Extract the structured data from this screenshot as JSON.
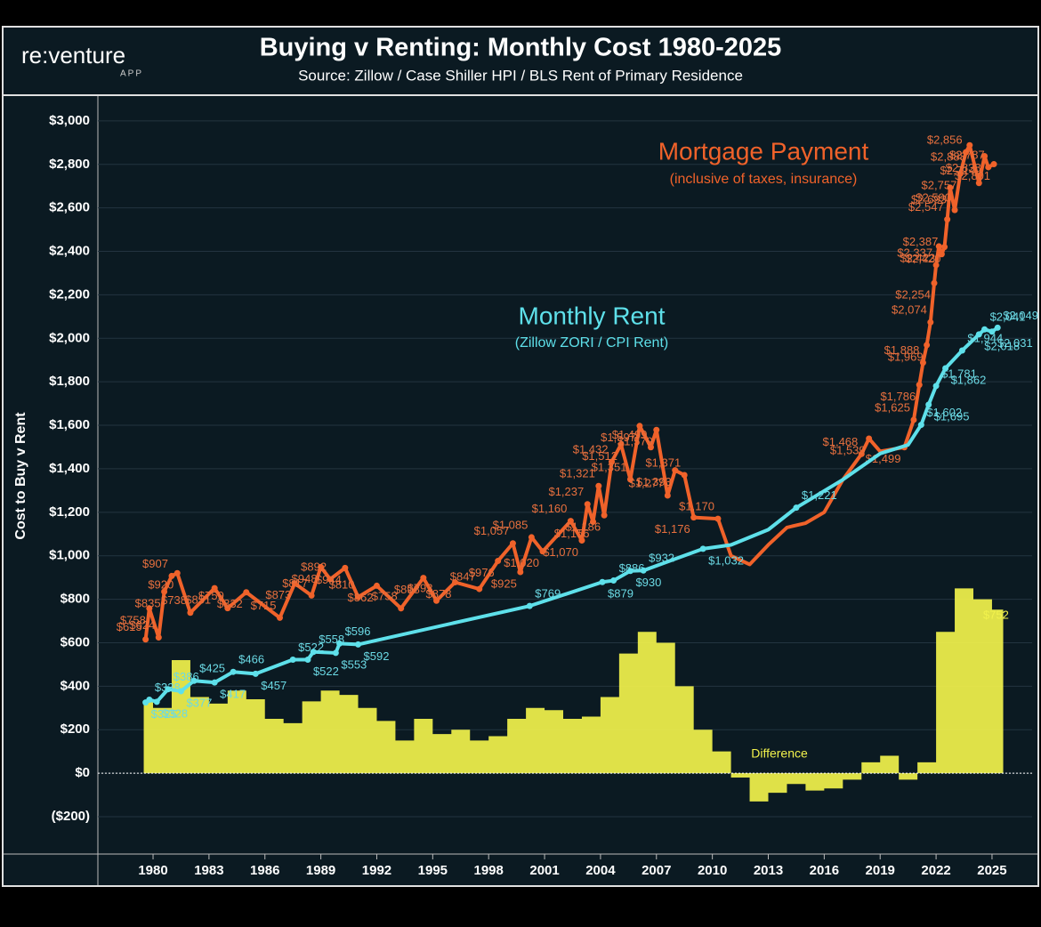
{
  "logo": {
    "name": "re:venture",
    "tag": "APP"
  },
  "chart_data": {
    "type": "line",
    "title": "Buying v Renting: Monthly Cost 1980-2025",
    "subtitle": "Source: Zillow / Case Shiller HPI / BLS Rent of Primary Residence",
    "y_label": "Cost to Buy v Rent",
    "grid": true,
    "xlim": [
      1977.04,
      2027.15
    ],
    "xticks": [
      1980,
      1983,
      1986,
      1989,
      1992,
      1995,
      1998,
      2001,
      2004,
      2007,
      2010,
      2013,
      2016,
      2019,
      2022,
      2025
    ],
    "ylim": [
      -372,
      3106
    ],
    "yticks": [
      {
        "value": -200,
        "label": "($200)"
      },
      {
        "value": 0,
        "label": "$0"
      },
      {
        "value": 200,
        "label": "$200"
      },
      {
        "value": 400,
        "label": "$400"
      },
      {
        "value": 600,
        "label": "$600"
      },
      {
        "value": 800,
        "label": "$800"
      },
      {
        "value": 1000,
        "label": "$1,000"
      },
      {
        "value": 1200,
        "label": "$1,200"
      },
      {
        "value": 1400,
        "label": "$1,400"
      },
      {
        "value": 1600,
        "label": "$1,600"
      },
      {
        "value": 1800,
        "label": "$1,800"
      },
      {
        "value": 2000,
        "label": "$2,000"
      },
      {
        "value": 2200,
        "label": "$2,200"
      },
      {
        "value": 2400,
        "label": "$2,400"
      },
      {
        "value": 2600,
        "label": "$2,600"
      },
      {
        "value": 2800,
        "label": "$2,800"
      },
      {
        "value": 3000,
        "label": "$3,000"
      }
    ],
    "series": [
      {
        "name": "Mortgage Payment",
        "note": "(inclusive of taxes, insurance)",
        "color": "#f0622a",
        "kind": "line",
        "x": [
          1979.6,
          1979.8,
          1980.3,
          1980.6,
          1981.0,
          1981.3,
          1982.0,
          1983.3,
          1984.0,
          1985.0,
          1986.8,
          1987.6,
          1988.5,
          1989.0,
          1989.5,
          1990.3,
          1991.0,
          1992.0,
          1993.3,
          1994.5,
          1995.2,
          1996.2,
          1997.5,
          1998.5,
          1999.3,
          1999.7,
          2000.3,
          2000.9,
          2002.4,
          2003.0,
          2003.3,
          2003.6,
          2003.9,
          2004.2,
          2004.6,
          2005.1,
          2005.6,
          2006.1,
          2006.7,
          2007.0,
          2007.6,
          2008.0,
          2008.5,
          2009.0,
          2010.3,
          2011,
          2012,
          2013,
          2014,
          2015,
          2016,
          2017,
          2018.0,
          2018.4,
          2019.0,
          2020.3,
          2020.8,
          2021.1,
          2021.3,
          2021.5,
          2021.7,
          2021.9,
          2022.0,
          2022.15,
          2022.3,
          2022.45,
          2022.6,
          2022.75,
          2023.0,
          2023.3,
          2023.6,
          2023.8,
          2024.3,
          2024.6,
          2024.8,
          2025.1
        ],
        "values": [
          615,
          758,
          624,
          835,
          907,
          920,
          738,
          851,
          759,
          832,
          715,
          873,
          817,
          948,
          892,
          944,
          810,
          862,
          758,
          898,
          793,
          878,
          847,
          976,
          1057,
          925,
          1085,
          1020,
          1160,
          1070,
          1237,
          1156,
          1321,
          1186,
          1432,
          1512,
          1351,
          1597,
          1499,
          1579,
          1277,
          1393,
          1371,
          1176,
          1170,
          1000,
          960,
          1050,
          1130,
          1150,
          1200,
          1350,
          1468,
          1539,
          1480,
          1499,
          1625,
          1786,
          1888,
          1969,
          2074,
          2254,
          2337,
          2423,
          2387,
          2420,
          2547,
          2693,
          2590,
          2757,
          2856,
          2888,
          2714,
          2838,
          2787,
          2801
        ],
        "value_labels": [
          "$615",
          "$758",
          "$624",
          "$835",
          "$907",
          "$920",
          "$738",
          "$851",
          "$759",
          "$832",
          "$715",
          "$873",
          "$817",
          "$948",
          "$892",
          "$944",
          "$810",
          "$862",
          "$758",
          "$898",
          "$793",
          "$878",
          "$847",
          "$976",
          "$1,057",
          "$925",
          "$1,085",
          "$1,020",
          "$1,160",
          "$1,070",
          "$1,237",
          "$1,156",
          "$1,321",
          "$1,186",
          "$1,432",
          "$1,512",
          "$1,351",
          "$1,597",
          "$1,499",
          "$1,579",
          "$1,277",
          "$1,393",
          "$1,371",
          "$1,176",
          "$1,170",
          null,
          null,
          null,
          null,
          null,
          null,
          null,
          "$1,468",
          "$1,539",
          null,
          "$1,499",
          "$1,625",
          "$1,786",
          "$1,888",
          "$1,969",
          "$2,074",
          "$2,254",
          "$2,337",
          "$2,423",
          "$2,387",
          "$2,420",
          "$2,547",
          "$2,693",
          "$2,590",
          "$2,757",
          "$2,856",
          "$2,888",
          "$2,714",
          "$2,838",
          "$2,787",
          "$2,801"
        ]
      },
      {
        "name": "Monthly Rent",
        "note": "(Zillow ZORI / CPI Rent)",
        "color": "#5ee0ea",
        "kind": "line",
        "x": [
          1979.6,
          1979.8,
          1980.2,
          1980.8,
          1981.5,
          1982.2,
          1983.3,
          1984.3,
          1985.5,
          1987.5,
          1988.3,
          1988.6,
          1989.8,
          1990.0,
          1991.0,
          2000.2,
          2004.1,
          2004.7,
          2005.6,
          2006.3,
          2009.5,
          2011,
          2013,
          2014.5,
          2017,
          2019,
          2020.5,
          2021.2,
          2021.6,
          2022.0,
          2022.5,
          2023.4,
          2024.3,
          2024.6,
          2025.0,
          2025.3
        ],
        "values": [
          325,
          338,
          328,
          386,
          377,
          425,
          417,
          466,
          457,
          522,
          522,
          558,
          553,
          596,
          592,
          769,
          879,
          886,
          930,
          932,
          1032,
          1050,
          1120,
          1221,
          1350,
          1470,
          1510,
          1602,
          1695,
          1781,
          1862,
          1944,
          2018,
          2041,
          2031,
          2049
        ],
        "value_labels": [
          "$325",
          "$338",
          "$328",
          "$386",
          "$377",
          "$425",
          "$417",
          "$466",
          "$457",
          "$522",
          "$522",
          "$558",
          "$553",
          "$596",
          "$592",
          "$769",
          "$879",
          "$886",
          "$930",
          "$932",
          "$1,032",
          null,
          null,
          "$1,221",
          null,
          null,
          null,
          "$1,602",
          "$1,695",
          "$1,781",
          "$1,862",
          "$1,944",
          "$2,018",
          "$2,041",
          "$2,031",
          "$2,049"
        ]
      },
      {
        "name": "Difference",
        "color": "#f2f24c",
        "kind": "area",
        "x": [
          1979.5,
          1980,
          1981,
          1982,
          1983,
          1984,
          1985,
          1986,
          1987,
          1988,
          1989,
          1990,
          1991,
          1992,
          1993,
          1994,
          1995,
          1996,
          1997,
          1998,
          1999,
          2000,
          2001,
          2002,
          2003,
          2004,
          2005,
          2006,
          2007,
          2008,
          2009,
          2010,
          2011,
          2012,
          2013,
          2014,
          2015,
          2016,
          2017,
          2018,
          2019,
          2020,
          2021,
          2022,
          2023,
          2024,
          2025
        ],
        "values": [
          330,
          300,
          520,
          350,
          320,
          380,
          340,
          250,
          230,
          330,
          380,
          360,
          300,
          240,
          150,
          250,
          180,
          200,
          150,
          170,
          250,
          300,
          290,
          250,
          260,
          350,
          550,
          650,
          600,
          400,
          200,
          100,
          -20,
          -130,
          -90,
          -50,
          -80,
          -70,
          -30,
          50,
          80,
          -30,
          50,
          650,
          850,
          800,
          752
        ],
        "value_labels": [
          null,
          null,
          null,
          null,
          null,
          null,
          null,
          null,
          null,
          null,
          null,
          null,
          null,
          null,
          null,
          null,
          null,
          null,
          null,
          null,
          null,
          null,
          null,
          null,
          null,
          null,
          null,
          null,
          null,
          null,
          null,
          null,
          null,
          null,
          null,
          null,
          null,
          null,
          null,
          null,
          null,
          null,
          null,
          null,
          null,
          null,
          "$752"
        ]
      }
    ]
  }
}
